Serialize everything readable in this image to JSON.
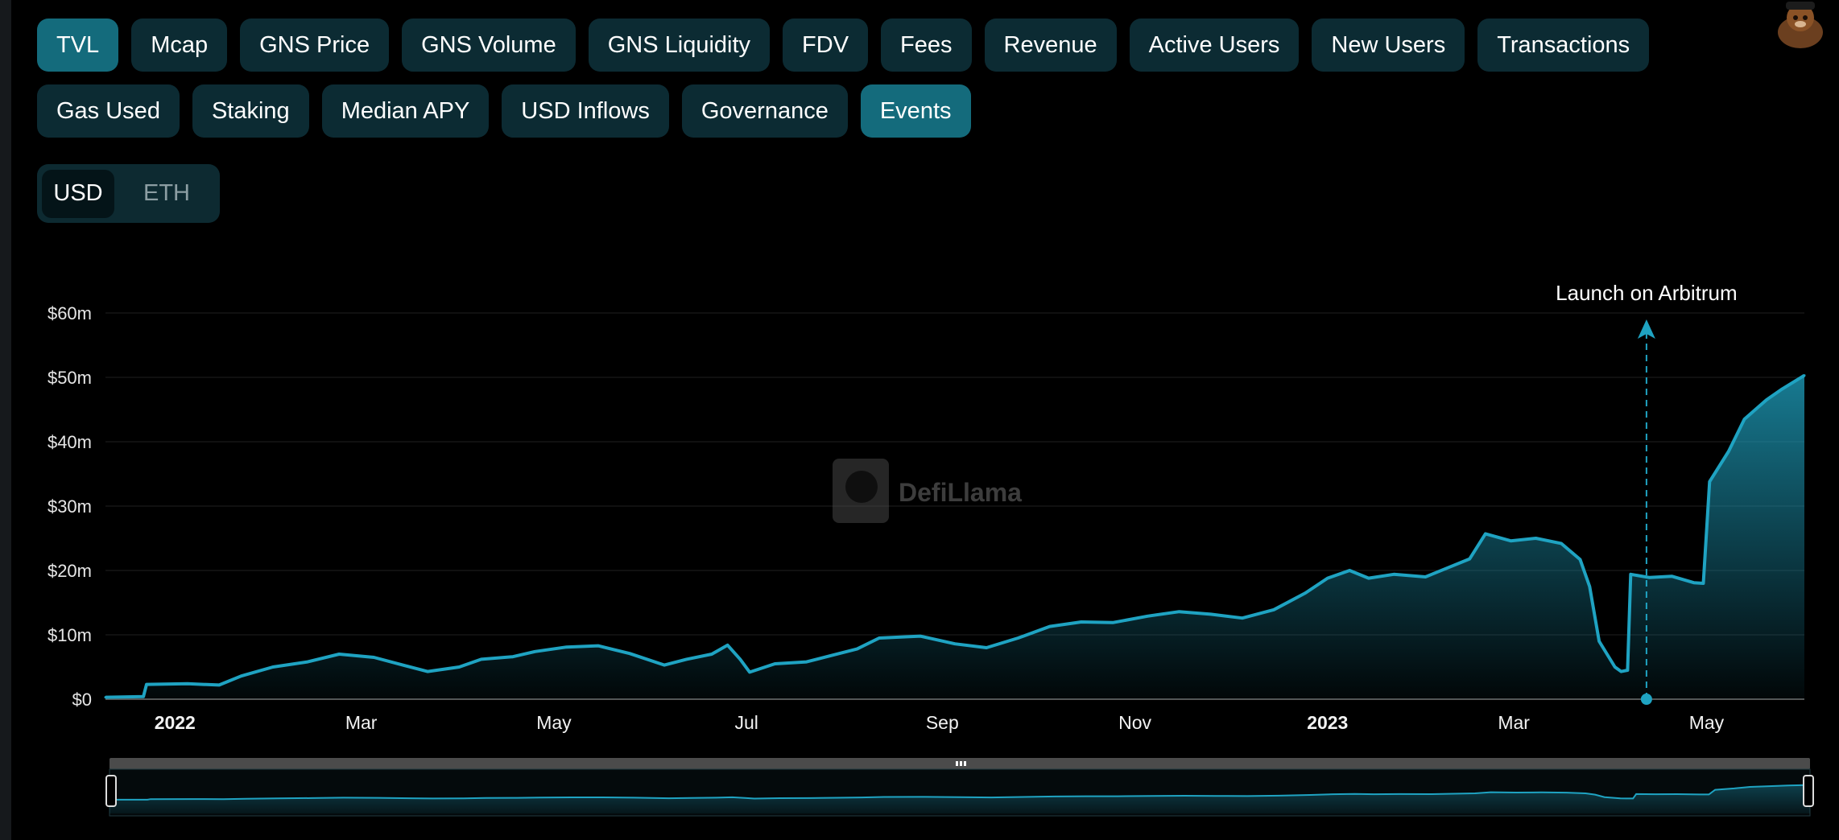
{
  "metric_tabs": {
    "row1": [
      "TVL",
      "Mcap",
      "GNS Price",
      "GNS Volume",
      "GNS Liquidity",
      "FDV",
      "Fees",
      "Revenue",
      "Active Users",
      "New Users",
      "Transactions"
    ],
    "row2": [
      "Gas Used",
      "Staking",
      "Median APY",
      "USD Inflows",
      "Governance",
      "Events"
    ],
    "active": [
      "TVL",
      "Events"
    ]
  },
  "currency": {
    "options": [
      "USD",
      "ETH"
    ],
    "selected": "USD"
  },
  "watermark": "DefiLlama",
  "colors": {
    "accent": "#1fa3c2",
    "active_tab": "#146b7c",
    "tab_bg": "#0c2b33",
    "background": "#000000"
  },
  "chart_data": {
    "type": "area",
    "title": "",
    "xlabel": "",
    "ylabel": "",
    "y_ticks": [
      "$0",
      "$10m",
      "$20m",
      "$30m",
      "$40m",
      "$50m",
      "$60m"
    ],
    "ylim": [
      0,
      60
    ],
    "y_unit": "millions USD",
    "x_ticks": [
      "2022",
      "Mar",
      "May",
      "Jul",
      "Sep",
      "Nov",
      "2023",
      "Mar",
      "May"
    ],
    "x_ticks_bold": [
      "2022",
      "2023"
    ],
    "xlim": [
      "2021-12-10",
      "2023-06-01"
    ],
    "grid": true,
    "series": [
      {
        "points": [
          [
            "2021-12-10",
            0.3
          ],
          [
            "2021-12-22",
            0.4
          ],
          [
            "2021-12-23",
            2.3
          ],
          [
            "2022-01-05",
            2.4
          ],
          [
            "2022-01-15",
            2.2
          ],
          [
            "2022-01-22",
            3.6
          ],
          [
            "2022-02-01",
            5.0
          ],
          [
            "2022-02-12",
            5.8
          ],
          [
            "2022-02-22",
            7.0
          ],
          [
            "2022-03-05",
            6.5
          ],
          [
            "2022-03-15",
            5.2
          ],
          [
            "2022-03-22",
            4.3
          ],
          [
            "2022-04-01",
            5.0
          ],
          [
            "2022-04-08",
            6.2
          ],
          [
            "2022-04-18",
            6.6
          ],
          [
            "2022-04-25",
            7.4
          ],
          [
            "2022-05-05",
            8.1
          ],
          [
            "2022-05-15",
            8.3
          ],
          [
            "2022-05-25",
            7.1
          ],
          [
            "2022-06-05",
            5.3
          ],
          [
            "2022-06-12",
            6.2
          ],
          [
            "2022-06-20",
            7.0
          ],
          [
            "2022-06-25",
            8.4
          ],
          [
            "2022-06-29",
            6.2
          ],
          [
            "2022-07-02",
            4.2
          ],
          [
            "2022-07-10",
            5.5
          ],
          [
            "2022-07-20",
            5.8
          ],
          [
            "2022-07-28",
            6.8
          ],
          [
            "2022-08-05",
            7.8
          ],
          [
            "2022-08-12",
            9.5
          ],
          [
            "2022-08-25",
            9.8
          ],
          [
            "2022-09-05",
            8.6
          ],
          [
            "2022-09-15",
            8.0
          ],
          [
            "2022-09-25",
            9.5
          ],
          [
            "2022-10-05",
            11.3
          ],
          [
            "2022-10-15",
            12.0
          ],
          [
            "2022-10-25",
            11.9
          ],
          [
            "2022-11-05",
            12.9
          ],
          [
            "2022-11-15",
            13.6
          ],
          [
            "2022-11-25",
            13.2
          ],
          [
            "2022-12-05",
            12.6
          ],
          [
            "2022-12-15",
            13.9
          ],
          [
            "2022-12-25",
            16.5
          ],
          [
            "2023-01-01",
            18.8
          ],
          [
            "2023-01-08",
            20.0
          ],
          [
            "2023-01-14",
            18.8
          ],
          [
            "2023-01-22",
            19.4
          ],
          [
            "2023-02-01",
            19.0
          ],
          [
            "2023-02-08",
            20.4
          ],
          [
            "2023-02-15",
            21.8
          ],
          [
            "2023-02-20",
            25.7
          ],
          [
            "2023-02-28",
            24.6
          ],
          [
            "2023-03-08",
            25.0
          ],
          [
            "2023-03-16",
            24.2
          ],
          [
            "2023-03-22",
            21.7
          ],
          [
            "2023-03-25",
            17.5
          ],
          [
            "2023-03-28",
            9.0
          ],
          [
            "2023-04-02",
            5.0
          ],
          [
            "2023-04-04",
            4.3
          ],
          [
            "2023-04-06",
            4.5
          ],
          [
            "2023-04-07",
            19.4
          ],
          [
            "2023-04-13",
            18.9
          ],
          [
            "2023-04-20",
            19.1
          ],
          [
            "2023-04-27",
            18.1
          ],
          [
            "2023-04-30",
            18.0
          ],
          [
            "2023-05-02",
            33.8
          ],
          [
            "2023-05-08",
            38.5
          ],
          [
            "2023-05-13",
            43.5
          ],
          [
            "2023-05-20",
            46.5
          ],
          [
            "2023-05-25",
            48.2
          ],
          [
            "2023-06-01",
            50.3
          ]
        ]
      }
    ],
    "annotations": [
      {
        "x": "2023-04-12",
        "label": "Launch on Arbitrum"
      }
    ]
  }
}
